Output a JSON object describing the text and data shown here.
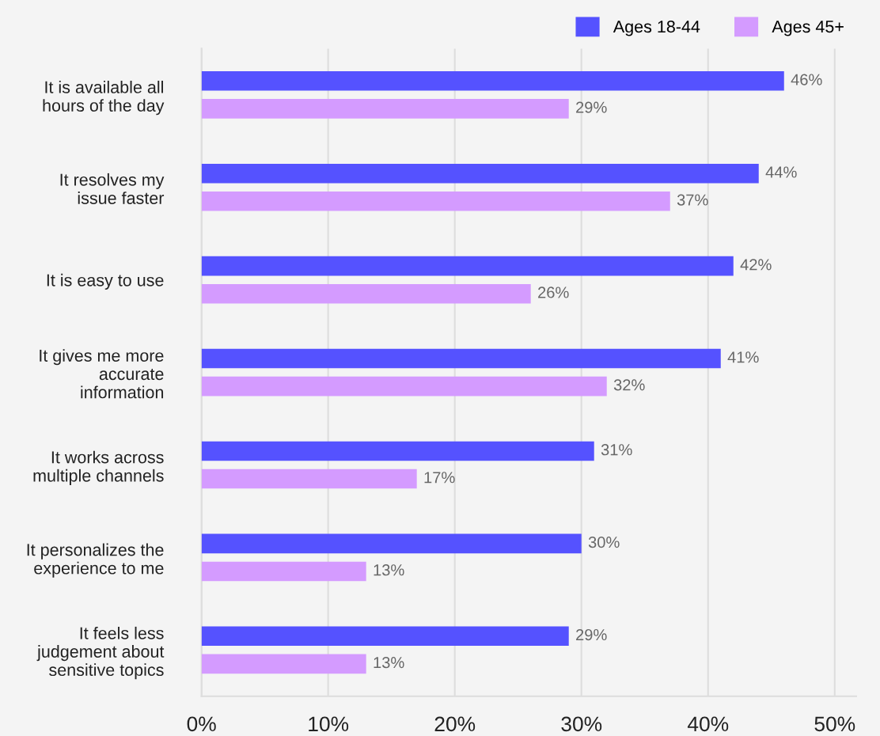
{
  "chart_data": {
    "type": "bar",
    "orientation": "horizontal",
    "categories": [
      "It is available all\nhours of the day",
      "It resolves my\nissue faster",
      "It is easy to use",
      "It gives me more\naccurate\ninformation",
      "It works across\nmultiple channels",
      "It personalizes the\nexperience to me",
      "It feels less\njudgement about\nsensitive topics"
    ],
    "series": [
      {
        "name": "Ages 18-44",
        "color": "#5552ff",
        "values": [
          46,
          44,
          42,
          41,
          31,
          30,
          29
        ],
        "value_labels": [
          "46%",
          "44%",
          "42%",
          "41%",
          "31%",
          "30%",
          "29%"
        ]
      },
      {
        "name": "Ages 45+",
        "color": "#d49bff",
        "values": [
          29,
          37,
          26,
          32,
          17,
          13,
          13
        ],
        "value_labels": [
          "29%",
          "37%",
          "26%",
          "32%",
          "17%",
          "13%",
          "13%"
        ]
      }
    ],
    "xlim": [
      0,
      51.7
    ],
    "xticks": [
      {
        "value": 0,
        "label": "0%"
      },
      {
        "value": 10,
        "label": "10%"
      },
      {
        "value": 20,
        "label": "20%"
      },
      {
        "value": 30,
        "label": "30%"
      },
      {
        "value": 40,
        "label": "40%"
      },
      {
        "value": 50,
        "label": "50%"
      }
    ],
    "grid": "x",
    "legend": "top right"
  }
}
